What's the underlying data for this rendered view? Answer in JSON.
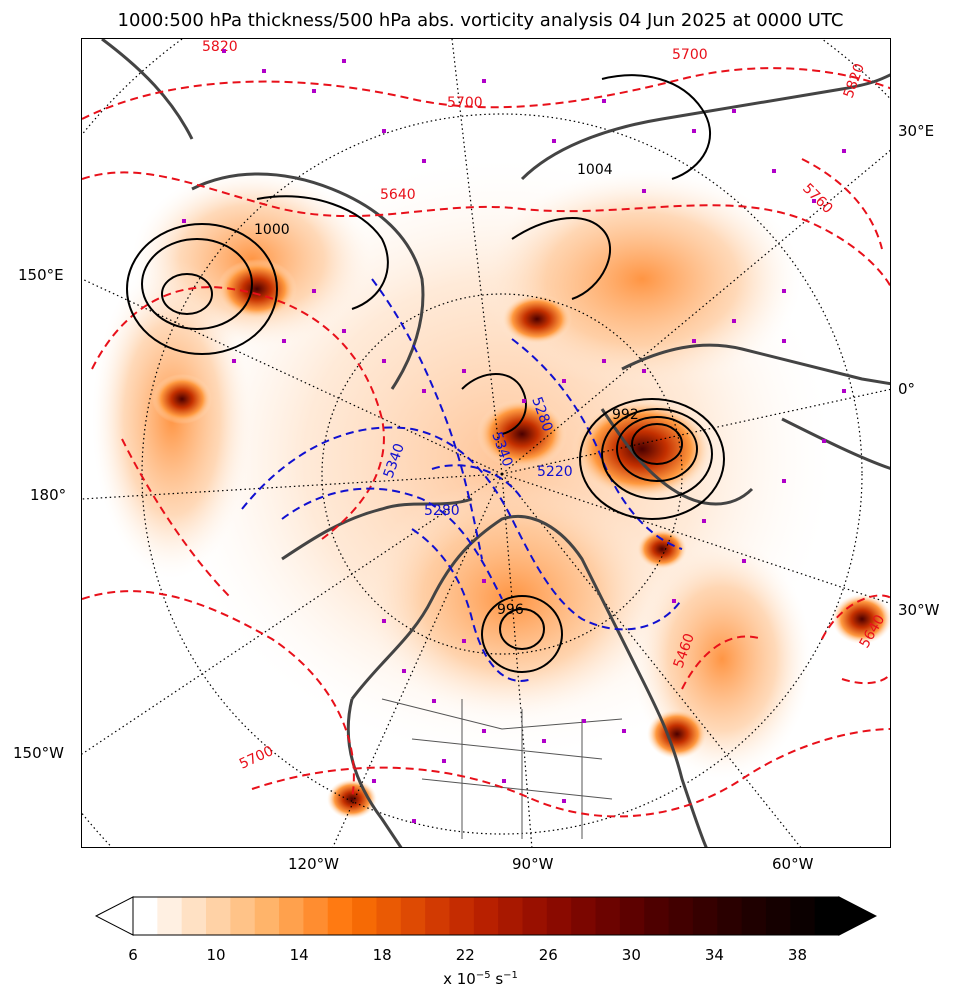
{
  "title": "1000:500 hPa thickness/500 hPa abs. vorticity analysis 04 Jun 2025 at 0000 UTC",
  "map": {
    "longitude_labels": {
      "e30": "30°E",
      "e150": "150°E",
      "zero": "0°",
      "d180": "180°",
      "w30": "30°W",
      "w150": "150°W",
      "w120": "120°W",
      "w90": "90°W",
      "w60": "60°W"
    },
    "thickness_contours_red": [
      "5700",
      "5640",
      "5760",
      "5700",
      "5640",
      "5820",
      "5820",
      "5700",
      "5460"
    ],
    "thickness_contours_blue": [
      "5340",
      "5220",
      "5280",
      "5280",
      "5340"
    ],
    "mslp_contours_black": [
      "1000",
      "1004",
      "992",
      "996"
    ],
    "colors": {
      "thickness_warm": "#e8101a",
      "thickness_cold": "#1010d0",
      "isobar": "#000000",
      "coastline": "#444444",
      "highlight_markers": "#b000c8"
    }
  },
  "colorbar": {
    "ticks": [
      "6",
      "10",
      "14",
      "18",
      "22",
      "26",
      "30",
      "34",
      "38"
    ],
    "unit": "x 10",
    "unit_exp": "−5",
    "unit_suffix": " s",
    "unit_exp2": "−1",
    "colors": [
      "#ffffff",
      "#fff0e2",
      "#ffe1c4",
      "#ffd2a6",
      "#ffc388",
      "#ffb46a",
      "#ffa14d",
      "#ff8d30",
      "#ff7a12",
      "#f66a05",
      "#ea5a04",
      "#de4a03",
      "#d23a02",
      "#c52c01",
      "#b82000",
      "#a81800",
      "#991000",
      "#8a0a00",
      "#7b0600",
      "#6c0300",
      "#5d0100",
      "#4e0000",
      "#420000",
      "#360000",
      "#2a0000",
      "#1f0000",
      "#150000",
      "#0b0000",
      "#000000"
    ]
  }
}
